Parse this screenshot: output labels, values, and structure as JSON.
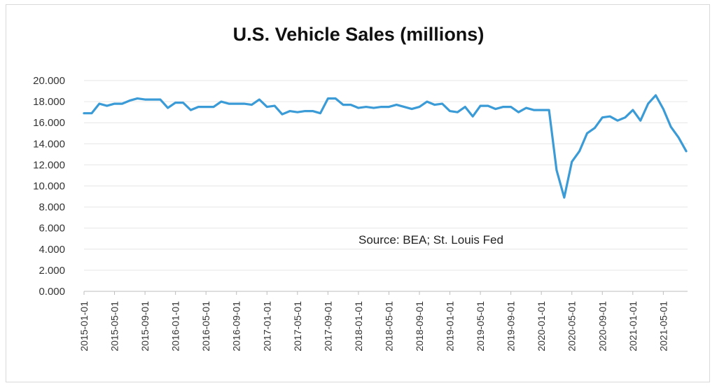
{
  "chart_data": {
    "type": "line",
    "title": "U.S. Vehicle Sales (millions)",
    "xlabel": "",
    "ylabel": "",
    "ylim": [
      0,
      20
    ],
    "y_ticks": [
      "0.000",
      "2.000",
      "4.000",
      "6.000",
      "8.000",
      "10.000",
      "12.000",
      "14.000",
      "16.000",
      "18.000",
      "20.000"
    ],
    "x_tick_labels": [
      "2015-01-01",
      "2015-05-01",
      "2015-09-01",
      "2016-01-01",
      "2016-05-01",
      "2016-09-01",
      "2017-01-01",
      "2017-05-01",
      "2017-09-01",
      "2018-01-01",
      "2018-05-01",
      "2018-09-01",
      "2019-01-01",
      "2019-05-01",
      "2019-09-01",
      "2020-01-01",
      "2020-05-01",
      "2020-09-01",
      "2021-01-01",
      "2021-05-01"
    ],
    "annotation": "Source: BEA; St. Louis Fed",
    "grid": "horizontal",
    "line_color": "#3b9bd6",
    "series": [
      {
        "x": [
          "2015-01",
          "2015-02",
          "2015-03",
          "2015-04",
          "2015-05",
          "2015-06",
          "2015-07",
          "2015-08",
          "2015-09",
          "2015-10",
          "2015-11",
          "2015-12",
          "2016-01",
          "2016-02",
          "2016-03",
          "2016-04",
          "2016-05",
          "2016-06",
          "2016-07",
          "2016-08",
          "2016-09",
          "2016-10",
          "2016-11",
          "2016-12",
          "2017-01",
          "2017-02",
          "2017-03",
          "2017-04",
          "2017-05",
          "2017-06",
          "2017-07",
          "2017-08",
          "2017-09",
          "2017-10",
          "2017-11",
          "2017-12",
          "2018-01",
          "2018-02",
          "2018-03",
          "2018-04",
          "2018-05",
          "2018-06",
          "2018-07",
          "2018-08",
          "2018-09",
          "2018-10",
          "2018-11",
          "2018-12",
          "2019-01",
          "2019-02",
          "2019-03",
          "2019-04",
          "2019-05",
          "2019-06",
          "2019-07",
          "2019-08",
          "2019-09",
          "2019-10",
          "2019-11",
          "2019-12",
          "2020-01",
          "2020-02",
          "2020-03",
          "2020-04",
          "2020-05",
          "2020-06",
          "2020-07",
          "2020-08",
          "2020-09",
          "2020-10",
          "2020-11",
          "2020-12",
          "2021-01",
          "2021-02",
          "2021-03",
          "2021-04",
          "2021-05",
          "2021-06",
          "2021-07",
          "2021-08"
        ],
        "values": [
          16.9,
          16.9,
          17.8,
          17.6,
          17.8,
          17.8,
          18.1,
          18.3,
          18.2,
          18.2,
          18.2,
          17.4,
          17.9,
          17.9,
          17.2,
          17.5,
          17.5,
          17.5,
          18.0,
          17.8,
          17.8,
          17.8,
          17.7,
          18.2,
          17.5,
          17.6,
          16.8,
          17.1,
          17.0,
          17.1,
          17.1,
          16.9,
          18.3,
          18.3,
          17.7,
          17.7,
          17.4,
          17.5,
          17.4,
          17.5,
          17.5,
          17.7,
          17.5,
          17.3,
          17.5,
          18.0,
          17.7,
          17.8,
          17.1,
          17.0,
          17.5,
          16.6,
          17.6,
          17.6,
          17.3,
          17.5,
          17.5,
          17.0,
          17.4,
          17.2,
          17.2,
          17.2,
          11.5,
          8.9,
          12.3,
          13.3,
          15.0,
          15.5,
          16.5,
          16.6,
          16.2,
          16.5,
          17.2,
          16.2,
          17.8,
          18.6,
          17.3,
          15.6,
          14.6,
          13.3
        ]
      }
    ]
  }
}
